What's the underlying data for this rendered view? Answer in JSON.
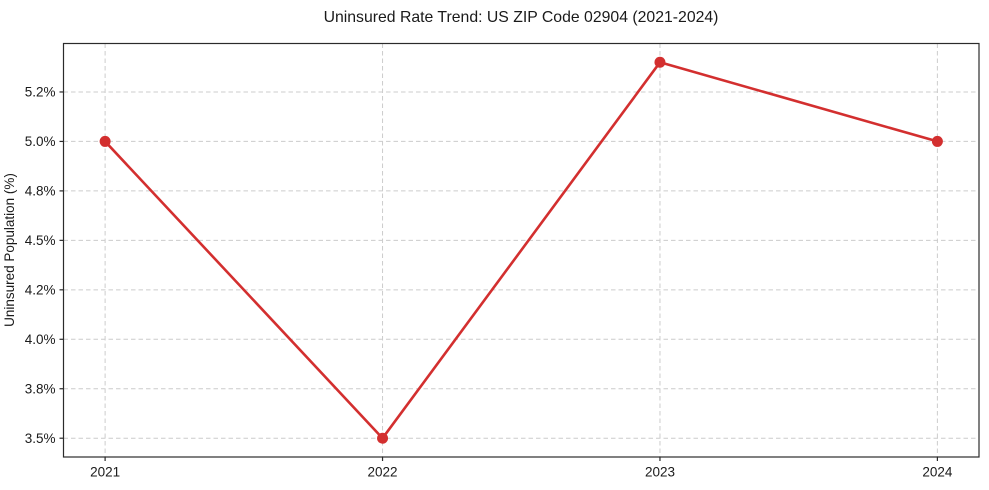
{
  "chart_data": {
    "type": "line",
    "title": "Uninsured Rate Trend: US ZIP Code 02904 (2021-2024)",
    "xlabel": "",
    "ylabel": "Uninsured Population (%)",
    "x": [
      2021,
      2022,
      2023,
      2024
    ],
    "series": [
      {
        "values": [
          5.0,
          3.5,
          5.4,
          5.0
        ],
        "color": "#d32f2f",
        "marker": "circle"
      }
    ],
    "xlim": [
      2020.85,
      2024.15
    ],
    "ylim": [
      3.405,
      5.495
    ],
    "xticks": [
      {
        "value": 2021,
        "label": "2021"
      },
      {
        "value": 2022,
        "label": "2022"
      },
      {
        "value": 2023,
        "label": "2023"
      },
      {
        "value": 2024,
        "label": "2024"
      }
    ],
    "yticks": [
      {
        "value": 3.5,
        "label": "3.5%"
      },
      {
        "value": 3.75,
        "label": "3.8%"
      },
      {
        "value": 4.0,
        "label": "4.0%"
      },
      {
        "value": 4.25,
        "label": "4.2%"
      },
      {
        "value": 4.5,
        "label": "4.5%"
      },
      {
        "value": 4.75,
        "label": "4.8%"
      },
      {
        "value": 5.0,
        "label": "5.0%"
      },
      {
        "value": 5.25,
        "label": "5.2%"
      }
    ],
    "grid": true,
    "grid_style": "dashed",
    "legend_position": "none",
    "colors": {
      "line": "#d32f2f",
      "marker": "#d32f2f",
      "grid": "#cccccc",
      "spine": "#2b2b2b",
      "text": "#1a1a1a",
      "background": "#ffffff"
    }
  }
}
